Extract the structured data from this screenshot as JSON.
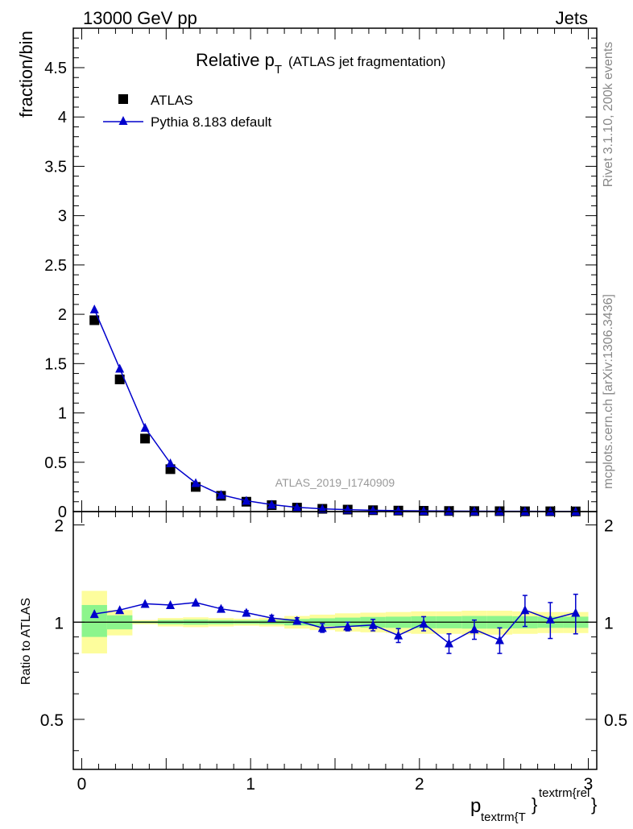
{
  "header": {
    "left": "13000 GeV pp",
    "right": "Jets"
  },
  "side_labels": {
    "rivet": "Rivet 3.1.10,  200k events",
    "source": "mcplots.cern.ch [arXiv:1306.3436]"
  },
  "colors": {
    "mc": "#0000cc",
    "data": "#000000",
    "band_inner": "#8cf58c",
    "band_outer": "#fdfd9c"
  },
  "chart_data": [
    {
      "type": "scatter",
      "panel": "main",
      "title_main": "Relative p",
      "title_sub": "T",
      "title_rest": "(ATLAS jet fragmentation)",
      "ylabel": "fraction/bin",
      "xlim": [
        -0.05,
        3.05
      ],
      "ylim": [
        0,
        4.9
      ],
      "yticks": [
        0,
        0.5,
        1,
        1.5,
        2,
        2.5,
        3,
        3.5,
        4,
        4.5
      ],
      "ytick_labels": [
        "0",
        "0.5",
        "1",
        "1.5",
        "2",
        "2.5",
        "3",
        "3.5",
        "4",
        "4.5"
      ],
      "analysis_label": "ATLAS_2019_I1740909",
      "legend": {
        "placement": "top-left",
        "data_label": "ATLAS",
        "mc_label": "Pythia 8.183 default"
      },
      "x": [
        0.075,
        0.225,
        0.375,
        0.525,
        0.675,
        0.825,
        0.975,
        1.125,
        1.275,
        1.425,
        1.575,
        1.725,
        1.875,
        2.025,
        2.175,
        2.325,
        2.475,
        2.625,
        2.775,
        2.925
      ],
      "series": [
        {
          "name": "ATLAS",
          "values": [
            1.94,
            1.34,
            0.74,
            0.43,
            0.25,
            0.16,
            0.1,
            0.065,
            0.04,
            0.028,
            0.02,
            0.014,
            0.01,
            0.008,
            0.006,
            0.005,
            0.004,
            0.003,
            0.003,
            0.002
          ]
        },
        {
          "name": "Pythia 8.183 default",
          "values": [
            2.05,
            1.45,
            0.85,
            0.49,
            0.29,
            0.17,
            0.11,
            0.07,
            0.043,
            0.028,
            0.02,
            0.013,
            0.009,
            0.007,
            0.005,
            0.004,
            0.003,
            0.003,
            0.002,
            0.002
          ]
        }
      ]
    },
    {
      "type": "line",
      "panel": "ratio",
      "ylabel": "Ratio to ATLAS",
      "xlabel_main": "p",
      "xlabel_sub": "textrm{T",
      "xlabel_brace": "}",
      "xlabel_sup": "textrm{rel",
      "xlabel_close": "}",
      "xlim": [
        -0.05,
        3.05
      ],
      "ylim": [
        0.35,
        2.2
      ],
      "xticks": [
        0,
        1,
        2,
        3
      ],
      "xtick_labels": [
        "0",
        "1",
        "2",
        "3"
      ],
      "yticks": [
        0.5,
        1,
        2
      ],
      "ytick_labels": [
        "0.5",
        "1",
        "2"
      ],
      "reference_line": 1,
      "bins": [
        0,
        0.15,
        0.3,
        0.45,
        0.6,
        0.75,
        0.9,
        1.05,
        1.2,
        1.35,
        1.5,
        1.65,
        1.8,
        1.95,
        2.1,
        2.25,
        2.4,
        2.55,
        2.7,
        2.85,
        3.0
      ],
      "band_outer": [
        [
          0.8,
          1.25
        ],
        [
          0.91,
          1.09
        ],
        [
          0.985,
          1.015
        ],
        [
          0.97,
          1.03
        ],
        [
          0.965,
          1.035
        ],
        [
          0.97,
          1.03
        ],
        [
          0.975,
          1.025
        ],
        [
          0.97,
          1.03
        ],
        [
          0.955,
          1.045
        ],
        [
          0.945,
          1.055
        ],
        [
          0.935,
          1.065
        ],
        [
          0.93,
          1.07
        ],
        [
          0.925,
          1.075
        ],
        [
          0.92,
          1.08
        ],
        [
          0.92,
          1.08
        ],
        [
          0.915,
          1.085
        ],
        [
          0.915,
          1.085
        ],
        [
          0.92,
          1.08
        ],
        [
          0.925,
          1.075
        ],
        [
          0.925,
          1.075
        ]
      ],
      "band_inner": [
        [
          0.9,
          1.13
        ],
        [
          0.95,
          1.05
        ],
        [
          0.993,
          1.007
        ],
        [
          0.985,
          1.015
        ],
        [
          0.982,
          1.018
        ],
        [
          0.985,
          1.015
        ],
        [
          0.987,
          1.013
        ],
        [
          0.985,
          1.015
        ],
        [
          0.977,
          1.023
        ],
        [
          0.972,
          1.028
        ],
        [
          0.967,
          1.033
        ],
        [
          0.962,
          1.038
        ],
        [
          0.96,
          1.04
        ],
        [
          0.957,
          1.043
        ],
        [
          0.957,
          1.043
        ],
        [
          0.955,
          1.045
        ],
        [
          0.955,
          1.045
        ],
        [
          0.957,
          1.043
        ],
        [
          0.96,
          1.04
        ],
        [
          0.96,
          1.04
        ]
      ],
      "x": [
        0.075,
        0.225,
        0.375,
        0.525,
        0.675,
        0.825,
        0.975,
        1.125,
        1.275,
        1.425,
        1.575,
        1.725,
        1.875,
        2.025,
        2.175,
        2.325,
        2.475,
        2.625,
        2.775,
        2.925
      ],
      "values": [
        1.06,
        1.09,
        1.14,
        1.13,
        1.15,
        1.1,
        1.07,
        1.03,
        1.01,
        0.96,
        0.97,
        0.98,
        0.91,
        0.99,
        0.86,
        0.95,
        0.88,
        1.09,
        1.02,
        1.07
      ],
      "errors": [
        0.005,
        0.005,
        0.006,
        0.008,
        0.01,
        0.012,
        0.015,
        0.02,
        0.022,
        0.03,
        0.03,
        0.04,
        0.045,
        0.05,
        0.06,
        0.065,
        0.08,
        0.12,
        0.13,
        0.15
      ]
    }
  ]
}
